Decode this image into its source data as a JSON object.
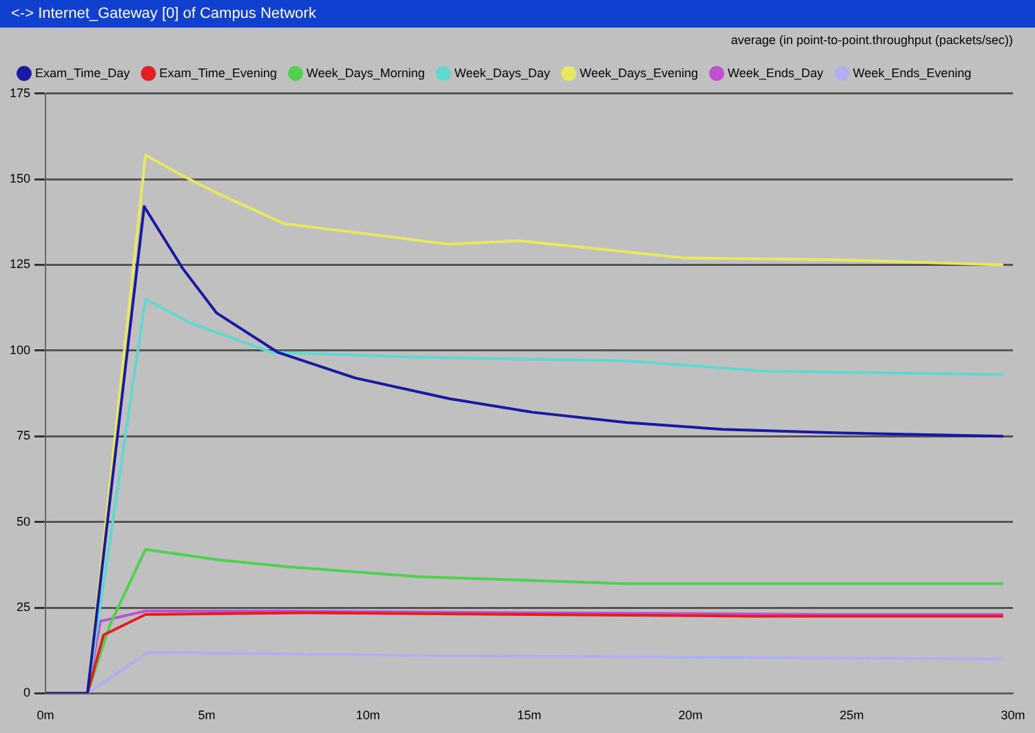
{
  "chart_data": {
    "type": "line",
    "title": "<-> Internet_Gateway [0] of Campus Network",
    "subtitle": "average (in point-to-point.throughput (packets/sec))",
    "xlim": [
      0,
      30
    ],
    "xticks": [
      {
        "value": 0,
        "label": "0m"
      },
      {
        "value": 5,
        "label": "5m"
      },
      {
        "value": 10,
        "label": "10m"
      },
      {
        "value": 15,
        "label": "15m"
      },
      {
        "value": 20,
        "label": "20m"
      },
      {
        "value": 25,
        "label": "25m"
      },
      {
        "value": 30,
        "label": "30m"
      }
    ],
    "ylim": [
      0,
      175
    ],
    "yticks": [
      0,
      25,
      50,
      75,
      100,
      125,
      150,
      175
    ],
    "grid": "y",
    "legend": "top left",
    "marker": "none",
    "line_style": "solid",
    "series": [
      {
        "name": "Exam_Time_Day",
        "color": "#1a1aa0",
        "x": [
          0,
          1.3,
          3.06,
          4.25,
          5.3,
          7.2,
          9.6,
          12.5,
          15.1,
          18,
          21,
          24.5,
          29.7
        ],
        "values": [
          0,
          0,
          142,
          124,
          111,
          99.5,
          92,
          86,
          82,
          79,
          77,
          76,
          75
        ]
      },
      {
        "name": "Exam_Time_Evening",
        "color": "#e02020",
        "x": [
          0,
          1.3,
          1.8,
          3.1,
          8,
          15,
          22,
          29.7
        ],
        "values": [
          0,
          0,
          17,
          23,
          23.5,
          23,
          22.5,
          22.5
        ]
      },
      {
        "name": "Week_Days_Morning",
        "color": "#50d050",
        "x": [
          0,
          1.3,
          2,
          3.1,
          5.3,
          7.4,
          11.6,
          18,
          24.5,
          29.7
        ],
        "values": [
          0,
          0,
          20,
          42,
          39,
          37,
          34,
          32,
          32,
          32
        ]
      },
      {
        "name": "Week_Days_Day",
        "color": "#60d8d0",
        "x": [
          0,
          1.3,
          3.1,
          4.5,
          7,
          11.7,
          18,
          22.3,
          29.7
        ],
        "values": [
          0,
          0,
          115,
          108,
          99.5,
          98,
          97,
          94,
          93
        ]
      },
      {
        "name": "Week_Days_Evening",
        "color": "#e8e860",
        "x": [
          0,
          1.3,
          3.1,
          4.25,
          5.3,
          7.4,
          10,
          12.5,
          14.7,
          16.8,
          19.8,
          24.5,
          29.7
        ],
        "values": [
          0,
          0,
          157,
          151,
          146,
          137,
          134,
          131,
          132,
          130,
          127,
          126.5,
          125
        ]
      },
      {
        "name": "Week_Ends_Day",
        "color": "#c050d0",
        "x": [
          0,
          1.3,
          1.7,
          3.1,
          7.4,
          15.1,
          24.5,
          29.7
        ],
        "values": [
          0,
          0,
          21,
          24,
          24,
          23.5,
          23,
          23
        ]
      },
      {
        "name": "Week_Ends_Evening",
        "color": "#b0b0f0",
        "x": [
          0,
          1.3,
          3.2,
          11.7,
          29.7
        ],
        "values": [
          0,
          0,
          12,
          11,
          10
        ]
      }
    ]
  }
}
